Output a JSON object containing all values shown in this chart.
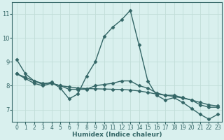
{
  "title": "",
  "xlabel": "Humidex (Indice chaleur)",
  "background_color": "#d9f0ee",
  "line_color": "#336666",
  "grid_color": "#c0ddd8",
  "series1_y": [
    9.1,
    8.5,
    8.2,
    8.05,
    8.15,
    7.9,
    7.45,
    7.65,
    8.4,
    9.0,
    10.05,
    10.45,
    10.75,
    11.15,
    9.7,
    8.2,
    7.6,
    7.4,
    7.5,
    7.3,
    7.05,
    6.8,
    6.6,
    6.8
  ],
  "series2_y": [
    8.5,
    8.3,
    8.1,
    8.0,
    8.1,
    8.0,
    7.85,
    7.85,
    7.85,
    8.0,
    8.05,
    8.1,
    8.2,
    8.2,
    8.0,
    7.9,
    7.7,
    7.6,
    7.6,
    7.5,
    7.4,
    7.2,
    7.1,
    7.1
  ],
  "series3_y": [
    8.5,
    8.35,
    8.2,
    8.1,
    8.1,
    8.0,
    7.95,
    7.9,
    7.88,
    7.87,
    7.86,
    7.85,
    7.84,
    7.82,
    7.78,
    7.72,
    7.65,
    7.6,
    7.55,
    7.48,
    7.4,
    7.3,
    7.2,
    7.15
  ],
  "xlim": [
    -0.5,
    23.5
  ],
  "ylim": [
    6.5,
    11.5
  ],
  "yticks": [
    7,
    8,
    9,
    10,
    11
  ],
  "xticks": [
    0,
    1,
    2,
    3,
    4,
    5,
    6,
    7,
    8,
    9,
    10,
    11,
    12,
    13,
    14,
    15,
    16,
    17,
    18,
    19,
    20,
    21,
    22,
    23
  ],
  "marker": "D",
  "markersize": 2.5,
  "linewidth": 1.0
}
